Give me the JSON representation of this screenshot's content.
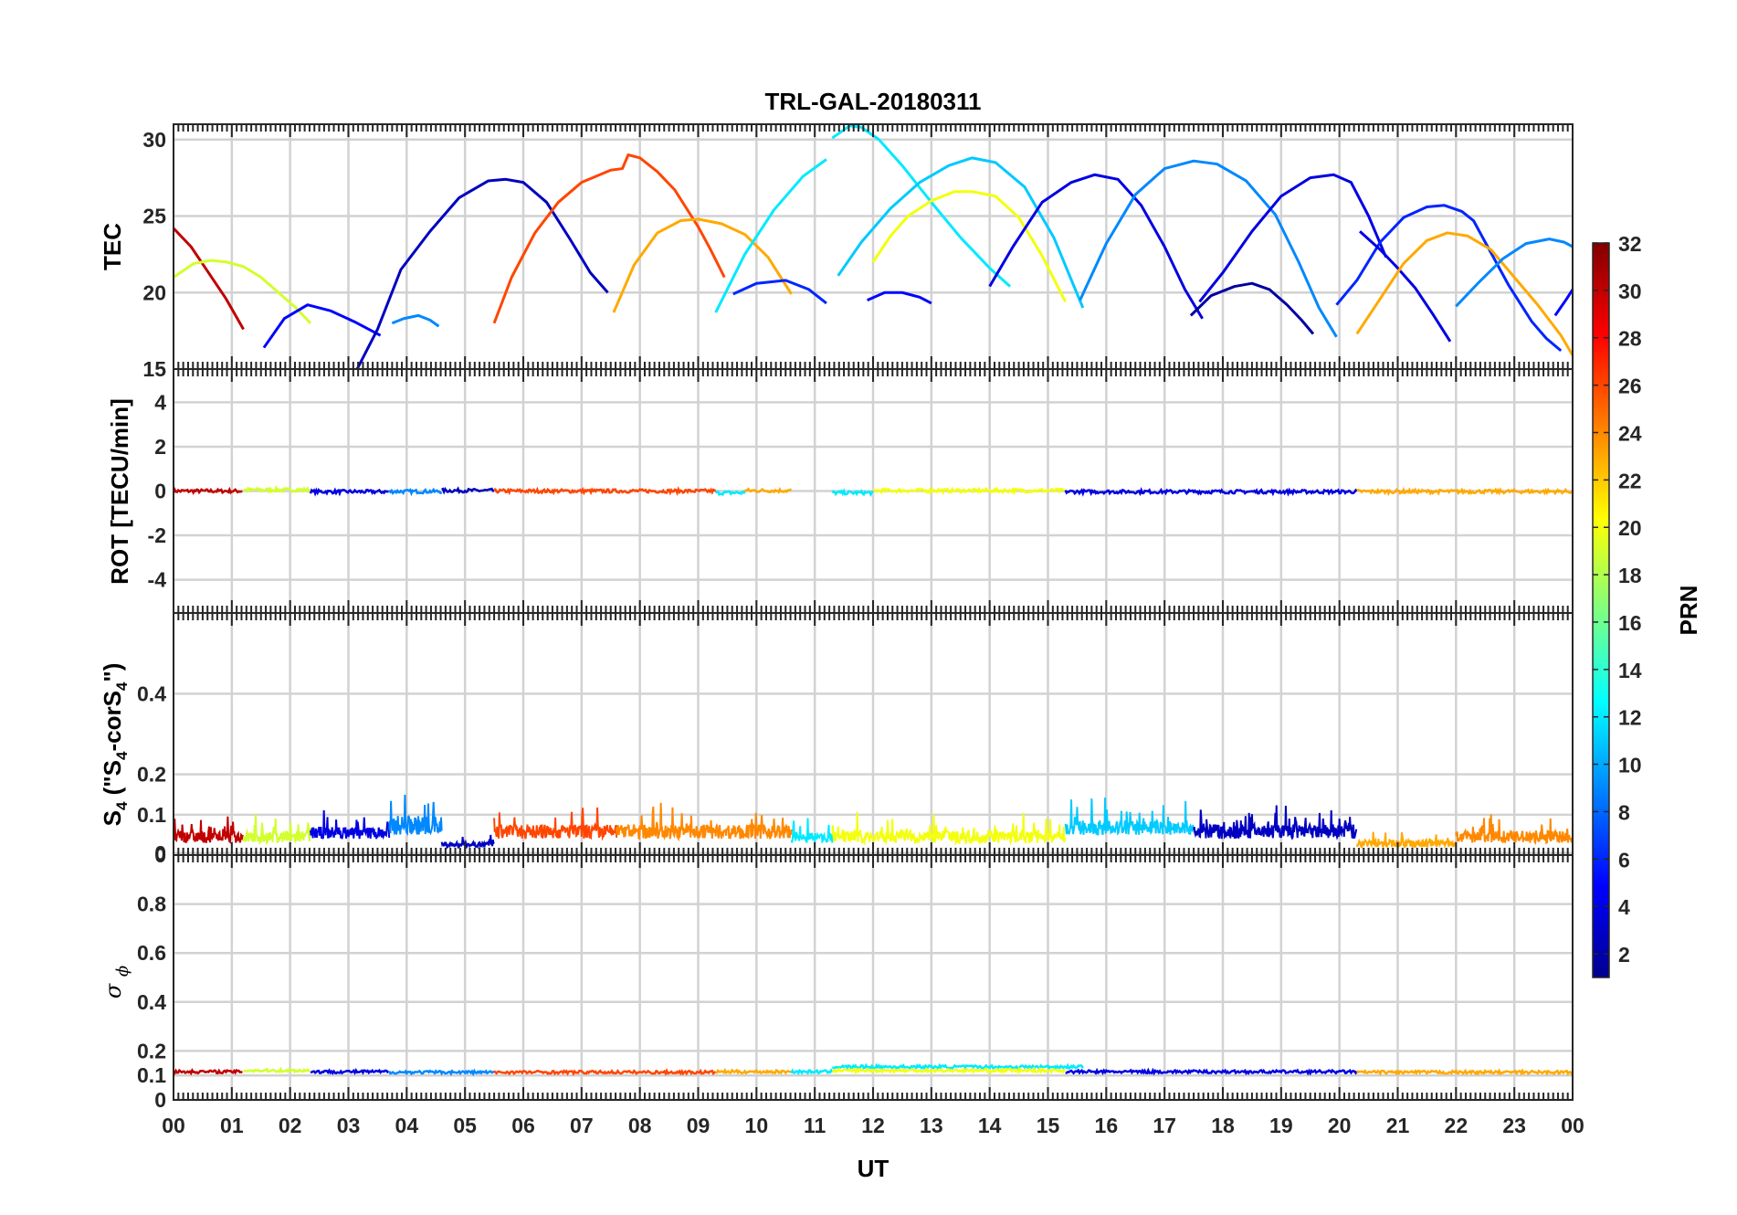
{
  "chart_data": {
    "type": "line",
    "title": "TRL-GAL-20180311",
    "xlabel": "UT",
    "x_range_hours": [
      0,
      24
    ],
    "x_tick_labels": [
      "00",
      "01",
      "02",
      "03",
      "04",
      "05",
      "06",
      "07",
      "08",
      "09",
      "10",
      "11",
      "12",
      "13",
      "14",
      "15",
      "16",
      "17",
      "18",
      "19",
      "20",
      "21",
      "22",
      "23",
      "00"
    ],
    "colorbar": {
      "label": "PRN",
      "range": [
        1,
        32
      ],
      "tick_labels": [
        "2",
        "4",
        "6",
        "8",
        "10",
        "12",
        "14",
        "16",
        "18",
        "20",
        "22",
        "24",
        "26",
        "28",
        "30",
        "32"
      ],
      "colormap": "jet"
    },
    "panels": [
      {
        "name": "TEC",
        "ylabel": "TEC",
        "ylim": [
          15,
          31
        ],
        "y_tick_labels": [
          "15",
          "20",
          "25",
          "30"
        ],
        "grid": true,
        "series": [
          {
            "prn": 30,
            "x": [
              0.0,
              0.3,
              0.6,
              0.9,
              1.2
            ],
            "y": [
              24.2,
              23.0,
              21.3,
              19.6,
              17.6
            ]
          },
          {
            "prn": 19,
            "x": [
              0.0,
              0.35,
              0.65,
              0.9,
              1.2,
              1.5,
              1.8,
              2.1,
              2.35
            ],
            "y": [
              21.0,
              21.9,
              22.1,
              22.0,
              21.7,
              21.0,
              20.0,
              19.0,
              18.0
            ]
          },
          {
            "prn": 5,
            "x": [
              1.55,
              1.9,
              2.3,
              2.7,
              3.1,
              3.55
            ],
            "y": [
              16.4,
              18.3,
              19.2,
              18.8,
              18.1,
              17.2
            ]
          },
          {
            "prn": 3,
            "x": [
              3.15,
              3.5,
              3.9,
              4.4,
              4.9,
              5.4,
              5.7,
              6.0,
              6.4,
              6.8,
              7.15,
              7.45
            ],
            "y": [
              15.0,
              17.6,
              21.5,
              24.0,
              26.2,
              27.3,
              27.4,
              27.2,
              25.9,
              23.5,
              21.3,
              20.0
            ]
          },
          {
            "prn": 9,
            "x": [
              3.75,
              3.95,
              4.2,
              4.4,
              4.55
            ],
            "y": [
              18.0,
              18.3,
              18.5,
              18.2,
              17.8
            ]
          },
          {
            "prn": 26,
            "x": [
              5.5,
              5.8,
              6.2,
              6.6,
              7.0,
              7.5,
              7.7,
              7.8,
              8.0,
              8.3,
              8.6,
              9.0,
              9.2,
              9.45
            ],
            "y": [
              18.0,
              21.0,
              23.9,
              25.9,
              27.2,
              28.0,
              28.1,
              29.0,
              28.8,
              27.9,
              26.7,
              24.3,
              22.9,
              21.0
            ]
          },
          {
            "prn": 23,
            "x": [
              7.55,
              7.9,
              8.3,
              8.7,
              9.0,
              9.4,
              9.8,
              10.2,
              10.6
            ],
            "y": [
              18.7,
              21.8,
              23.9,
              24.7,
              24.8,
              24.5,
              23.8,
              22.3,
              19.9
            ]
          },
          {
            "prn": 12,
            "x": [
              9.3,
              9.8,
              10.3,
              10.8,
              11.2
            ],
            "y": [
              18.7,
              22.5,
              25.4,
              27.6,
              28.7
            ]
          },
          {
            "prn": 6,
            "x": [
              9.6,
              10.0,
              10.5,
              10.9,
              11.2
            ],
            "y": [
              19.9,
              20.6,
              20.8,
              20.2,
              19.3
            ]
          },
          {
            "prn": 12,
            "x": [
              11.3,
              11.6,
              11.8,
              12.1,
              12.5,
              13.0,
              13.5,
              14.0,
              14.35
            ],
            "y": [
              30.1,
              30.9,
              30.8,
              30.0,
              28.3,
              25.9,
              23.6,
              21.6,
              20.4
            ]
          },
          {
            "prn": 5,
            "x": [
              11.9,
              12.2,
              12.5,
              12.8,
              13.0
            ],
            "y": [
              19.5,
              20.0,
              20.0,
              19.7,
              19.3
            ]
          },
          {
            "prn": 11,
            "x": [
              11.4,
              11.8,
              12.3,
              12.8,
              13.3,
              13.7,
              14.1,
              14.6,
              15.1,
              15.6
            ],
            "y": [
              21.1,
              23.3,
              25.5,
              27.2,
              28.3,
              28.8,
              28.5,
              26.9,
              23.6,
              19.0
            ]
          },
          {
            "prn": 20,
            "x": [
              12.0,
              12.3,
              12.6,
              13.0,
              13.4,
              13.7,
              14.1,
              14.5,
              14.9,
              15.3
            ],
            "y": [
              22.0,
              23.7,
              25.0,
              26.0,
              26.6,
              26.6,
              26.3,
              24.9,
              22.4,
              19.4
            ]
          },
          {
            "prn": 4,
            "x": [
              14.0,
              14.4,
              14.9,
              15.4,
              15.8,
              16.2,
              16.6,
              17.0,
              17.35,
              17.65
            ],
            "y": [
              20.4,
              23.0,
              25.9,
              27.2,
              27.7,
              27.4,
              25.7,
              23.0,
              20.2,
              18.3
            ]
          },
          {
            "prn": 9,
            "x": [
              15.55,
              16.0,
              16.5,
              17.0,
              17.5,
              17.9,
              18.4,
              18.9,
              19.3,
              19.65,
              19.95
            ],
            "y": [
              19.5,
              23.2,
              26.4,
              28.1,
              28.6,
              28.4,
              27.3,
              25.1,
              22.0,
              19.0,
              17.1
            ]
          },
          {
            "prn": 2,
            "x": [
              17.45,
              17.8,
              18.2,
              18.5,
              18.8,
              19.1,
              19.35,
              19.55
            ],
            "y": [
              18.5,
              19.8,
              20.4,
              20.6,
              20.2,
              19.2,
              18.2,
              17.3
            ]
          },
          {
            "prn": 4,
            "x": [
              17.6,
              18.0,
              18.5,
              19.0,
              19.5,
              19.9,
              20.2,
              20.5,
              20.8
            ],
            "y": [
              19.4,
              21.3,
              24.0,
              26.3,
              27.5,
              27.7,
              27.2,
              25.0,
              22.3
            ]
          },
          {
            "prn": 6,
            "x": [
              19.95,
              20.3,
              20.7,
              21.1,
              21.5,
              21.8,
              22.1,
              22.3,
              22.5,
              22.9,
              23.3,
              23.55,
              23.8
            ],
            "y": [
              19.2,
              20.8,
              23.3,
              24.9,
              25.6,
              25.7,
              25.3,
              24.7,
              23.3,
              20.5,
              18.1,
              17.0,
              16.2
            ]
          },
          {
            "prn": 4,
            "x": [
              20.35,
              20.7,
              21.0,
              21.3,
              21.6,
              21.9
            ],
            "y": [
              24.0,
              22.8,
              21.6,
              20.3,
              18.6,
              16.8
            ]
          },
          {
            "prn": 23,
            "x": [
              20.3,
              20.7,
              21.1,
              21.5,
              21.85,
              22.2,
              22.6,
              23.0,
              23.4,
              23.8,
              24.0
            ],
            "y": [
              17.3,
              19.6,
              21.9,
              23.4,
              23.9,
              23.7,
              22.8,
              21.0,
              19.2,
              17.2,
              15.9
            ]
          },
          {
            "prn": 9,
            "x": [
              22.0,
              22.4,
              22.8,
              23.2,
              23.6,
              23.85,
              24.0
            ],
            "y": [
              19.1,
              20.7,
              22.2,
              23.2,
              23.5,
              23.3,
              23.0
            ]
          },
          {
            "prn": 5,
            "x": [
              23.7,
              23.9,
              24.0
            ],
            "y": [
              18.5,
              19.6,
              20.2
            ]
          }
        ]
      },
      {
        "name": "ROT",
        "ylabel": "ROT [TECU/min]",
        "ylim": [
          -5.5,
          5.5
        ],
        "y_tick_labels": [
          "-4",
          "-2",
          "0",
          "2",
          "4"
        ],
        "grid": true,
        "note": "all PRN traces stay within about ±0.2 TECU/min around 0",
        "series_segments": [
          {
            "prn": 30,
            "x": [
              0.0,
              1.2
            ],
            "level": 0.0
          },
          {
            "prn": 19,
            "x": [
              1.2,
              2.35
            ],
            "level": 0.05
          },
          {
            "prn": 4,
            "x": [
              2.35,
              3.7
            ],
            "level": -0.03
          },
          {
            "prn": 9,
            "x": [
              3.7,
              4.6
            ],
            "level": -0.02
          },
          {
            "prn": 3,
            "x": [
              4.6,
              5.5
            ],
            "level": 0.02
          },
          {
            "prn": 26,
            "x": [
              5.5,
              9.3
            ],
            "level": 0.0
          },
          {
            "prn": 12,
            "x": [
              9.3,
              9.8
            ],
            "level": -0.08
          },
          {
            "prn": 23,
            "x": [
              9.8,
              10.6
            ],
            "level": 0.02
          },
          {
            "prn": 12,
            "x": [
              11.3,
              12.0
            ],
            "level": -0.08
          },
          {
            "prn": 20,
            "x": [
              12.0,
              15.3
            ],
            "level": 0.02
          },
          {
            "prn": 4,
            "x": [
              15.3,
              20.3
            ],
            "level": -0.03
          },
          {
            "prn": 23,
            "x": [
              20.3,
              24.0
            ],
            "level": -0.02
          }
        ]
      },
      {
        "name": "S4",
        "ylabel": "S4 (\"S4-corS4\")",
        "ylim": [
          0,
          0.6
        ],
        "y_tick_labels": [
          "0",
          "0",
          "0.1",
          "0.2",
          "0.4"
        ],
        "grid": true,
        "note": "noisy S4 traces mostly between 0.02 and 0.12",
        "series_segments": [
          {
            "prn": 30,
            "x": [
              0.0,
              1.2
            ],
            "base": 0.03,
            "amp": 0.05
          },
          {
            "prn": 19,
            "x": [
              1.2,
              2.35
            ],
            "base": 0.03,
            "amp": 0.05
          },
          {
            "prn": 4,
            "x": [
              2.35,
              3.7
            ],
            "base": 0.04,
            "amp": 0.05
          },
          {
            "prn": 9,
            "x": [
              3.7,
              4.6
            ],
            "base": 0.05,
            "amp": 0.08
          },
          {
            "prn": 3,
            "x": [
              4.6,
              5.5
            ],
            "base": 0.02,
            "amp": 0.02
          },
          {
            "prn": 26,
            "x": [
              5.5,
              7.6
            ],
            "base": 0.04,
            "amp": 0.06
          },
          {
            "prn": 24,
            "x": [
              7.6,
              10.6
            ],
            "base": 0.04,
            "amp": 0.06
          },
          {
            "prn": 12,
            "x": [
              10.6,
              11.3
            ],
            "base": 0.03,
            "amp": 0.04
          },
          {
            "prn": 20,
            "x": [
              11.3,
              15.3
            ],
            "base": 0.03,
            "amp": 0.05
          },
          {
            "prn": 11,
            "x": [
              15.3,
              17.5
            ],
            "base": 0.05,
            "amp": 0.06
          },
          {
            "prn": 3,
            "x": [
              17.5,
              20.3
            ],
            "base": 0.04,
            "amp": 0.06
          },
          {
            "prn": 23,
            "x": [
              20.3,
              22.0
            ],
            "base": 0.02,
            "amp": 0.03
          },
          {
            "prn": 24,
            "x": [
              22.0,
              24.0
            ],
            "base": 0.03,
            "amp": 0.05
          }
        ]
      },
      {
        "name": "sigma_phi",
        "ylabel": "σ ϕ",
        "ylim": [
          0,
          1
        ],
        "y_tick_labels": [
          "0",
          "0.1",
          "0.2",
          "0.4",
          "0.6",
          "0.8"
        ],
        "grid": true,
        "note": "all PRN traces stay near 0.11-0.13",
        "series_segments": [
          {
            "prn": 30,
            "x": [
              0.0,
              1.2
            ],
            "level": 0.115
          },
          {
            "prn": 19,
            "x": [
              1.2,
              2.35
            ],
            "level": 0.12
          },
          {
            "prn": 4,
            "x": [
              2.35,
              3.7
            ],
            "level": 0.115
          },
          {
            "prn": 9,
            "x": [
              3.7,
              5.5
            ],
            "level": 0.113
          },
          {
            "prn": 26,
            "x": [
              5.5,
              9.3
            ],
            "level": 0.113
          },
          {
            "prn": 23,
            "x": [
              9.3,
              10.6
            ],
            "level": 0.115
          },
          {
            "prn": 12,
            "x": [
              10.6,
              11.3
            ],
            "level": 0.115
          },
          {
            "prn": 12,
            "x": [
              11.3,
              15.6
            ],
            "level": 0.135
          },
          {
            "prn": 20,
            "x": [
              11.3,
              15.3
            ],
            "level": 0.12
          },
          {
            "prn": 4,
            "x": [
              15.3,
              20.3
            ],
            "level": 0.115
          },
          {
            "prn": 23,
            "x": [
              20.3,
              24.0
            ],
            "level": 0.113
          }
        ]
      }
    ]
  }
}
